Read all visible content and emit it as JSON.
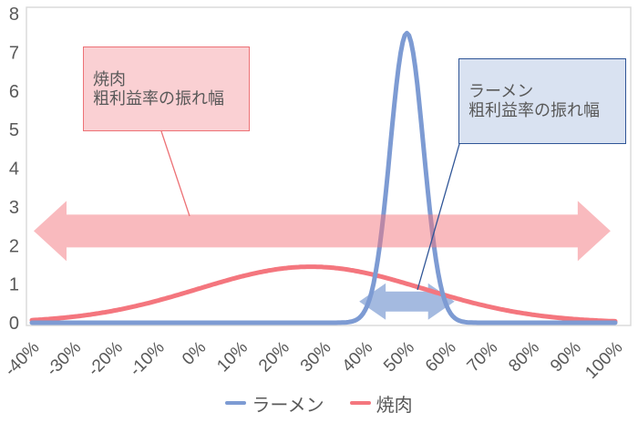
{
  "chart": {
    "annotations": {
      "yakiniku": {
        "text": "焼肉\n粗利益率の振れ幅"
      },
      "ramen": {
        "text": "ラーメン\n粗利益率の振れ幅"
      }
    },
    "colors": {
      "ramen_line": "#7d9bd3",
      "yakiniku_line": "#f4767e",
      "pink_arrow": "rgba(244,118,126,0.5)",
      "blue_arrow": "#a4bae0",
      "axis_border": "#d9d9d9",
      "tick_text": "#595959",
      "ramen_box_fill": "#d9e2f1",
      "ramen_box_border": "#2f5597",
      "yakiniku_box_fill": "#fad0d3",
      "yakiniku_box_border": "#ed7276"
    }
  },
  "chart_data": {
    "type": "line",
    "title": "",
    "xlabel": "",
    "ylabel": "",
    "grid": false,
    "legend_position": "bottom",
    "ylim": [
      0,
      8
    ],
    "y_ticks": [
      "0",
      "1",
      "2",
      "3",
      "4",
      "5",
      "6",
      "7",
      "8"
    ],
    "categories": [
      "-40%",
      "-30%",
      "-20%",
      "-10%",
      "0%",
      "10%",
      "20%",
      "30%",
      "40%",
      "50%",
      "60%",
      "70%",
      "80%",
      "90%",
      "100%"
    ],
    "series": [
      {
        "name": "ラーメン",
        "color": "#7d9bd3",
        "gaussian": {
          "mean": 0.5,
          "sd": 0.04,
          "peak": 7.5
        },
        "values": [
          0,
          0,
          0,
          0,
          0,
          0,
          0,
          0,
          0.33,
          7.5,
          0.33,
          0,
          0,
          0,
          0
        ]
      },
      {
        "name": "焼肉",
        "color": "#f4767e",
        "gaussian": {
          "mean": 0.27,
          "sd": 0.27,
          "peak": 1.45
        },
        "values": [
          0.07,
          0.16,
          0.32,
          0.57,
          0.88,
          1.19,
          1.4,
          1.44,
          1.29,
          1.01,
          0.69,
          0.41,
          0.21,
          0.1,
          0.04
        ]
      }
    ],
    "range_arrows": [
      {
        "series": "焼肉",
        "from_pct": -0.4,
        "to_pct": 0.98,
        "at_value": 2.4
      },
      {
        "series": "ラーメン",
        "from_pct": 0.39,
        "to_pct": 0.61,
        "at_value": 0.55
      }
    ]
  }
}
